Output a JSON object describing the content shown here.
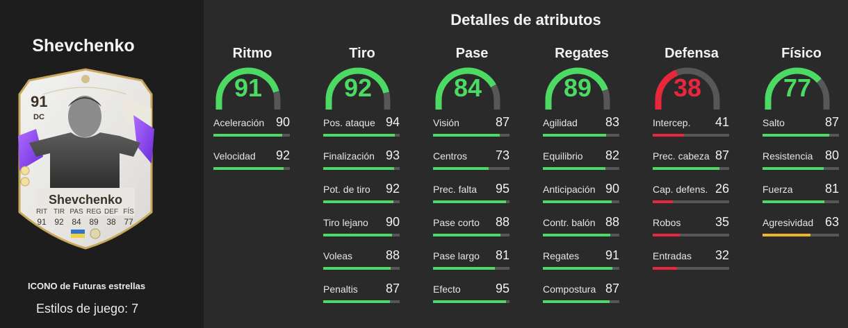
{
  "player": {
    "name": "Shevchenko",
    "card_name": "Shevchenko",
    "rating": "91",
    "position": "DC",
    "card_stat_labels": [
      "RIT",
      "TIR",
      "PAS",
      "REG",
      "DEF",
      "FÍS"
    ],
    "card_stat_values": [
      "91",
      "92",
      "84",
      "89",
      "38",
      "77"
    ],
    "card_type": "ICONO de Futuras estrellas",
    "playstyles_text": "Estilos de juego: 7"
  },
  "colors": {
    "green": "#4cd964",
    "red": "#e8263c",
    "yellow": "#f0b429",
    "track": "#575757"
  },
  "details_title": "Detalles de atributos",
  "categories": [
    {
      "name": "Ritmo",
      "value": 91,
      "color": "green",
      "stats": [
        {
          "label": "Aceleración",
          "value": 90,
          "color": "green"
        },
        {
          "label": "Velocidad",
          "value": 92,
          "color": "green"
        }
      ]
    },
    {
      "name": "Tiro",
      "value": 92,
      "color": "green",
      "stats": [
        {
          "label": "Pos. ataque",
          "value": 94,
          "color": "green"
        },
        {
          "label": "Finalización",
          "value": 93,
          "color": "green"
        },
        {
          "label": "Pot. de tiro",
          "value": 92,
          "color": "green"
        },
        {
          "label": "Tiro lejano",
          "value": 90,
          "color": "green"
        },
        {
          "label": "Voleas",
          "value": 88,
          "color": "green"
        },
        {
          "label": "Penaltis",
          "value": 87,
          "color": "green"
        }
      ]
    },
    {
      "name": "Pase",
      "value": 84,
      "color": "green",
      "stats": [
        {
          "label": "Visión",
          "value": 87,
          "color": "green"
        },
        {
          "label": "Centros",
          "value": 73,
          "color": "green"
        },
        {
          "label": "Prec. falta",
          "value": 95,
          "color": "green"
        },
        {
          "label": "Pase corto",
          "value": 88,
          "color": "green"
        },
        {
          "label": "Pase largo",
          "value": 81,
          "color": "green"
        },
        {
          "label": "Efecto",
          "value": 95,
          "color": "green"
        }
      ]
    },
    {
      "name": "Regates",
      "value": 89,
      "color": "green",
      "stats": [
        {
          "label": "Agilidad",
          "value": 83,
          "color": "green"
        },
        {
          "label": "Equilibrio",
          "value": 82,
          "color": "green"
        },
        {
          "label": "Anticipación",
          "value": 90,
          "color": "green"
        },
        {
          "label": "Contr. balón",
          "value": 88,
          "color": "green"
        },
        {
          "label": "Regates",
          "value": 91,
          "color": "green"
        },
        {
          "label": "Compostura",
          "value": 87,
          "color": "green"
        }
      ]
    },
    {
      "name": "Defensa",
      "value": 38,
      "color": "red",
      "stats": [
        {
          "label": "Intercep.",
          "value": 41,
          "color": "red"
        },
        {
          "label": "Prec. cabeza",
          "value": 87,
          "color": "green"
        },
        {
          "label": "Cap. defens.",
          "value": 26,
          "color": "red"
        },
        {
          "label": "Robos",
          "value": 35,
          "color": "red"
        },
        {
          "label": "Entradas",
          "value": 32,
          "color": "red"
        }
      ]
    },
    {
      "name": "Físico",
      "value": 77,
      "color": "green",
      "stats": [
        {
          "label": "Salto",
          "value": 87,
          "color": "green"
        },
        {
          "label": "Resistencia",
          "value": 80,
          "color": "green"
        },
        {
          "label": "Fuerza",
          "value": 81,
          "color": "green"
        },
        {
          "label": "Agresividad",
          "value": 63,
          "color": "yellow"
        }
      ]
    }
  ]
}
